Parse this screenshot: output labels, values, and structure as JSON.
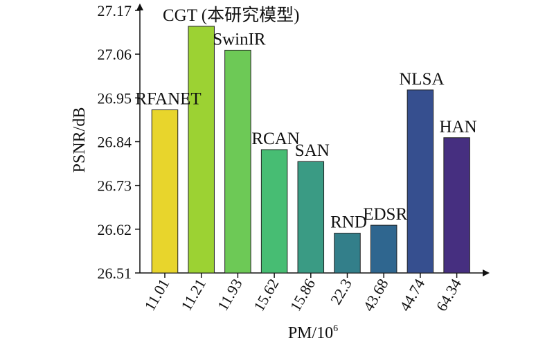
{
  "chart_data": {
    "type": "bar",
    "title": "",
    "xlabel": "PM/10",
    "xlabel_sup": "6",
    "ylabel": "PSNR/dB",
    "ylim": [
      26.51,
      27.17
    ],
    "yticks": [
      26.51,
      26.62,
      26.73,
      26.84,
      26.95,
      27.06,
      27.17
    ],
    "ytick_labels": [
      "26.51",
      "26.62",
      "26.73",
      "26.84",
      "26.95",
      "27.06",
      "27.17"
    ],
    "categories": [
      "11.01",
      "11.21",
      "11.93",
      "15.62",
      "15.86",
      "22.3",
      "43.68",
      "44.74",
      "64.34"
    ],
    "labels": [
      "RFANET",
      "CGT (本研究模型)",
      "SwinIR",
      "RCAN",
      "SAN",
      "RND",
      "EDSR",
      "NLSA",
      "HAN"
    ],
    "values": [
      26.92,
      27.13,
      27.07,
      26.82,
      26.79,
      26.61,
      26.63,
      26.97,
      26.85
    ],
    "colors": [
      "#e8d52c",
      "#9cd233",
      "#6dc956",
      "#47bd73",
      "#3a9b84",
      "#337f8a",
      "#2f668f",
      "#364f8f",
      "#462f80"
    ],
    "grid": false,
    "legend": "none"
  }
}
